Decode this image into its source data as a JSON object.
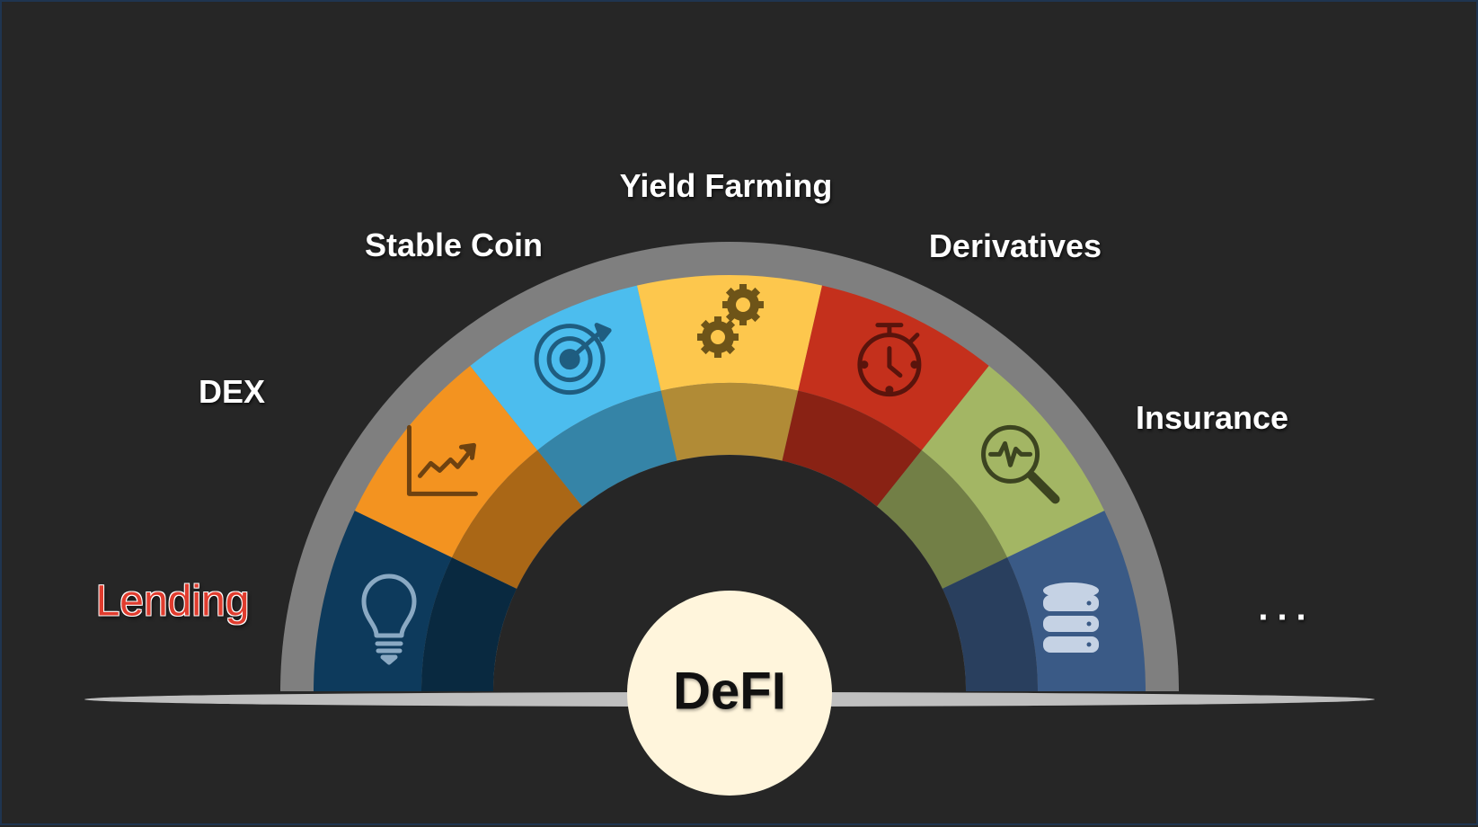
{
  "center": {
    "label": "DeFI"
  },
  "segments": [
    {
      "id": "lending",
      "label": "Lending",
      "color": "#0d3a5c",
      "icon": "lightbulb-icon",
      "highlighted": true
    },
    {
      "id": "dex",
      "label": "DEX",
      "color": "#f39320",
      "icon": "line-chart-icon"
    },
    {
      "id": "stable-coin",
      "label": "Stable Coin",
      "color": "#4cbdee",
      "icon": "target-icon"
    },
    {
      "id": "yield-farming",
      "label": "Yield Farming",
      "color": "#fdc74d",
      "icon": "gears-icon"
    },
    {
      "id": "derivatives",
      "label": "Derivatives",
      "color": "#c4301c",
      "icon": "stopwatch-icon"
    },
    {
      "id": "insurance",
      "label": "Insurance",
      "color": "#a3b664",
      "icon": "magnifier-pulse-icon"
    },
    {
      "id": "more",
      "label": "...",
      "color": "#3a5a86",
      "icon": "database-icon"
    }
  ],
  "colors": {
    "background": "#262626",
    "outer_ring": "#7f7f7f",
    "baseline": "#bfbfbf",
    "center_fill": "#fff5dc"
  }
}
